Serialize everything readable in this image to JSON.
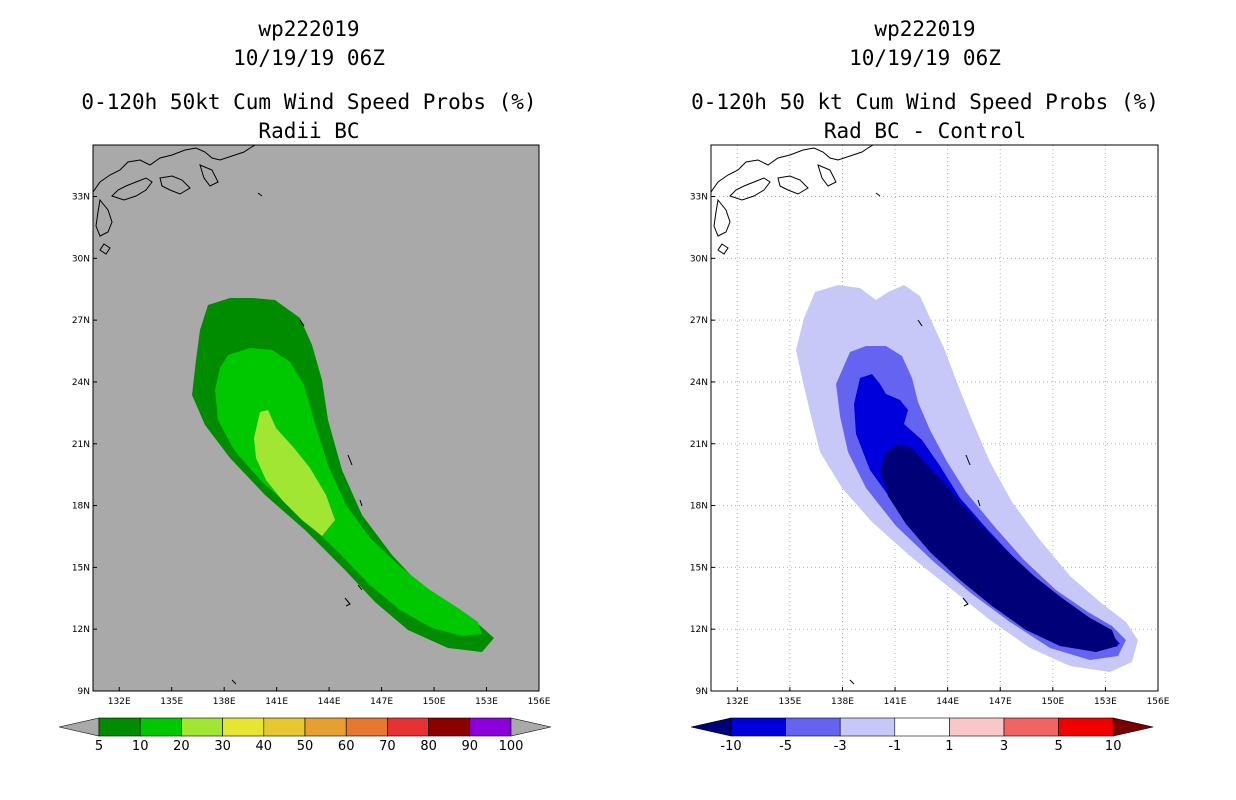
{
  "panels": [
    {
      "storm_id": "wp222019",
      "datetime": "10/19/19 06Z",
      "product": "0-120h 50kt Cum Wind Speed Probs (%)",
      "subtitle": "Radii BC",
      "background": "#a9a9a9",
      "colorbar": {
        "labels": [
          "5",
          "10",
          "20",
          "30",
          "40",
          "50",
          "60",
          "70",
          "80",
          "90",
          "100"
        ],
        "colors": [
          "#008c00",
          "#00c800",
          "#a0e632",
          "#e6e632",
          "#e6c832",
          "#e6a032",
          "#e67832",
          "#e63232",
          "#8c0000",
          "#8c00dc"
        ],
        "under_color": "#a9a9a9",
        "over_color": "#a9a9a9"
      }
    },
    {
      "storm_id": "wp222019",
      "datetime": "10/19/19 06Z",
      "product": "0-120h 50 kt Cum Wind Speed Probs (%)",
      "subtitle": "Rad BC - Control",
      "background": "#ffffff",
      "colorbar": {
        "labels": [
          "-10",
          "-5",
          "-3",
          "-1",
          "1",
          "3",
          "5",
          "10"
        ],
        "colors": [
          "#0000dc",
          "#6464f0",
          "#c8c8f8",
          "#ffffff",
          "#f8c8c8",
          "#f06464",
          "#f00000"
        ],
        "under_color": "#000078",
        "over_color": "#780000"
      }
    }
  ],
  "map": {
    "lon_labels": [
      "132E",
      "135E",
      "138E",
      "141E",
      "144E",
      "147E",
      "150E",
      "153E",
      "156E"
    ],
    "lat_labels": [
      "33N",
      "30N",
      "27N",
      "24N",
      "21N",
      "18N",
      "15N",
      "12N",
      "9N"
    ]
  }
}
